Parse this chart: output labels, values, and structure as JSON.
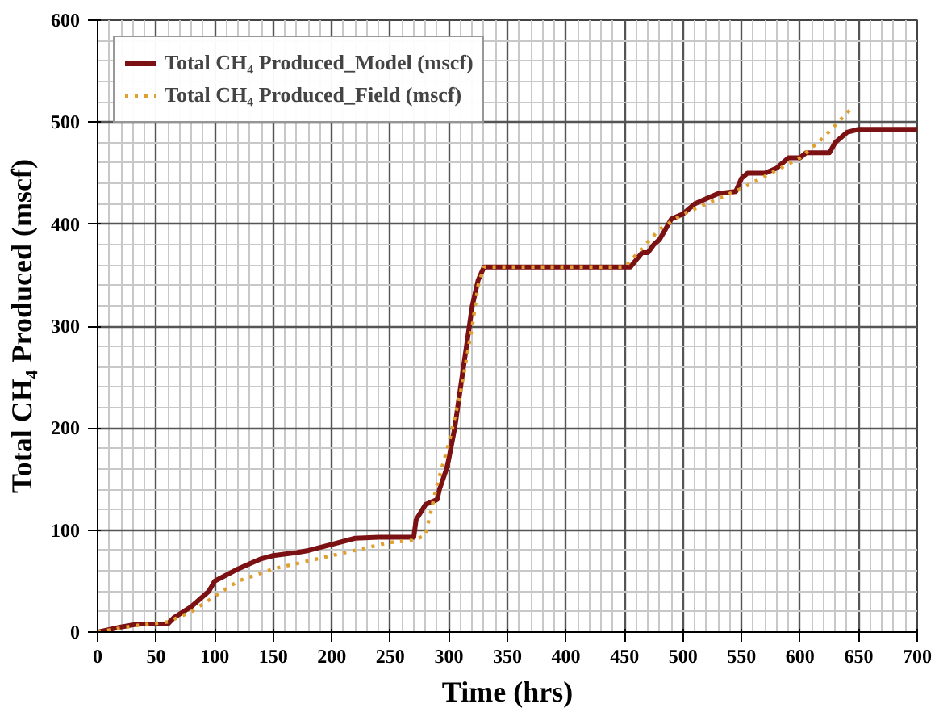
{
  "chart_data": {
    "type": "line",
    "xlabel": "Time (hrs)",
    "ylabel": "Total CH₄ Produced (mscf)",
    "xlim": [
      0,
      700
    ],
    "ylim": [
      0,
      600
    ],
    "xticks": [
      0,
      50,
      100,
      150,
      200,
      250,
      300,
      350,
      400,
      450,
      500,
      550,
      600,
      650,
      700
    ],
    "yticks": [
      0,
      100,
      200,
      300,
      400,
      500,
      600
    ],
    "grid": true,
    "legend": "top left",
    "marker": "none",
    "series": [
      {
        "name": "Total CH₄ Produced_Model (mscf)",
        "color": "#7b1113",
        "line_style": "solid",
        "x": [
          0,
          20,
          35,
          60,
          65,
          80,
          95,
          100,
          110,
          120,
          130,
          140,
          150,
          170,
          180,
          200,
          220,
          240,
          270,
          272,
          280,
          290,
          292,
          298,
          300,
          305,
          310,
          315,
          320,
          325,
          330,
          340,
          455,
          460,
          465,
          470,
          475,
          480,
          485,
          490,
          500,
          510,
          520,
          530,
          545,
          550,
          555,
          570,
          580,
          590,
          600,
          605,
          625,
          630,
          640,
          650,
          700
        ],
        "values": [
          0,
          5,
          8,
          8,
          14,
          25,
          40,
          50,
          56,
          62,
          67,
          72,
          75,
          78,
          80,
          86,
          92,
          93,
          93,
          110,
          125,
          130,
          140,
          160,
          170,
          200,
          240,
          280,
          320,
          345,
          358,
          358,
          358,
          365,
          372,
          372,
          380,
          385,
          395,
          405,
          410,
          420,
          425,
          430,
          432,
          445,
          450,
          450,
          455,
          465,
          465,
          470,
          470,
          480,
          490,
          493,
          493
        ]
      },
      {
        "name": "Total CH₄ Produced_Field (mscf)",
        "color": "#e0a030",
        "line_style": "dotted",
        "x": [
          0,
          30,
          60,
          80,
          100,
          120,
          150,
          200,
          250,
          270,
          280,
          285,
          290,
          300,
          310,
          320,
          325,
          330,
          450,
          460,
          480,
          500,
          550,
          600,
          620,
          645
        ],
        "values": [
          0,
          6,
          10,
          20,
          35,
          50,
          62,
          75,
          88,
          90,
          95,
          120,
          145,
          185,
          235,
          300,
          340,
          358,
          358,
          370,
          395,
          410,
          435,
          465,
          485,
          515
        ]
      }
    ]
  }
}
